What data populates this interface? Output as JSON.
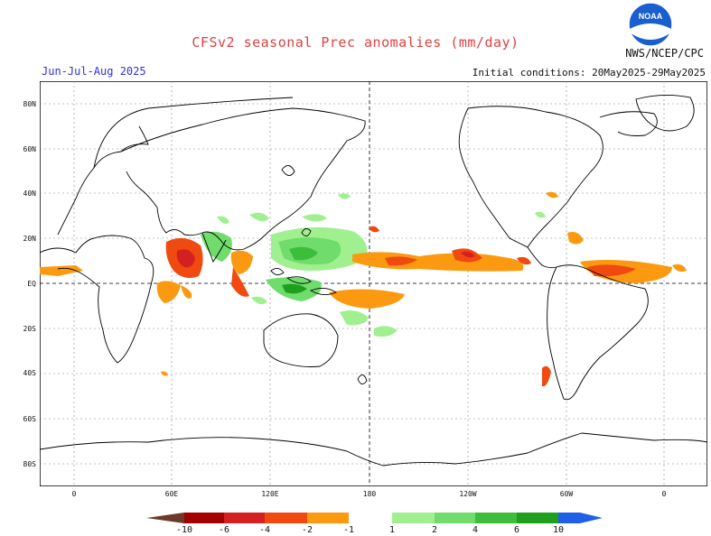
{
  "header": {
    "title": "CFSv2 seasonal Prec anomalies (mm/day)",
    "season": "Jun-Jul-Aug 2025",
    "initial_conditions": "Initial conditions: 20May2025-29May2025",
    "agency": "NWS/NCEP/CPC",
    "logo_text": "NOAA"
  },
  "map": {
    "lat_labels": [
      "80N",
      "60N",
      "40N",
      "20N",
      "EQ",
      "20S",
      "40S",
      "60S",
      "80S"
    ],
    "lon_labels": [
      "0",
      "60E",
      "120E",
      "180",
      "120W",
      "60W",
      "0"
    ]
  },
  "legend": {
    "ticks": [
      "-10",
      "-6",
      "-4",
      "-2",
      "-1",
      "1",
      "2",
      "4",
      "6",
      "10"
    ],
    "colors": {
      "dry_extreme": "#6b3a2a",
      "dry_4": "#a40000",
      "dry_3": "#d42020",
      "dry_2": "#f04a10",
      "dry_1": "#fb9a10",
      "neutral": "#ffffff",
      "wet_1": "#a0f090",
      "wet_2": "#70dc6c",
      "wet_3": "#3cbe3c",
      "wet_4": "#1ea01e",
      "wet_5": "#0c8c0c",
      "wet_extreme": "#2060e8"
    }
  }
}
